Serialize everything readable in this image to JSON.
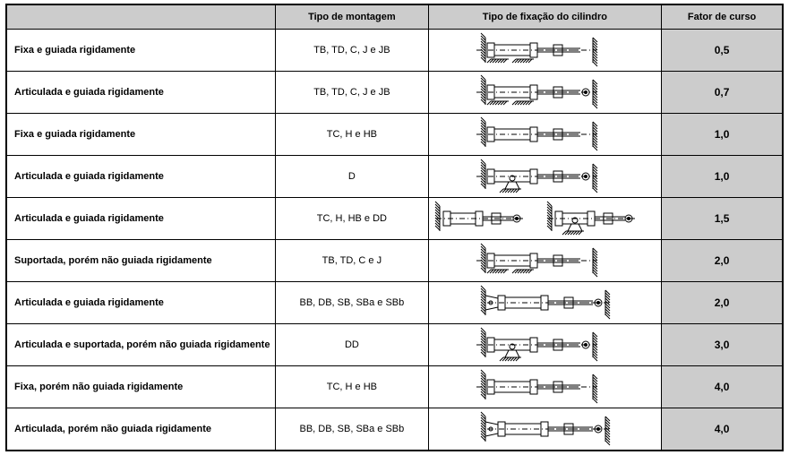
{
  "headers": {
    "h0": "",
    "h1": "Tipo de montagem",
    "h2": "Tipo de fixação do cilindro",
    "h3": "Fator de curso"
  },
  "rows": [
    {
      "desc": "Fixa e guiada rigidamente",
      "mount": "TB, TD, C, J e JB",
      "factor": "0,5",
      "diagram": "A"
    },
    {
      "desc": "Articulada e guiada rigidamente",
      "mount": "TB, TD, C, J e JB",
      "factor": "0,7",
      "diagram": "B"
    },
    {
      "desc": "Fixa e guiada rigidamente",
      "mount": "TC, H e HB",
      "factor": "1,0",
      "diagram": "C"
    },
    {
      "desc": "Articulada e guiada rigidamente",
      "mount": "D",
      "factor": "1,0",
      "diagram": "D"
    },
    {
      "desc": "Articulada e guiada rigidamente",
      "mount": "TC, H, HB e DD",
      "factor": "1,5",
      "diagram": "E"
    },
    {
      "desc": "Suportada, porém não guiada rigidamente",
      "mount": "TB, TD, C e J",
      "factor": "2,0",
      "diagram": "F"
    },
    {
      "desc": "Articulada e guiada rigidamente",
      "mount": "BB, DB, SB, SBa e SBb",
      "factor": "2,0",
      "diagram": "G"
    },
    {
      "desc": "Articulada e suportada, porém não guiada rigidamente",
      "mount": "DD",
      "factor": "3,0",
      "diagram": "H"
    },
    {
      "desc": "Fixa, porém não guiada rigidamente",
      "mount": "TC, H e HB",
      "factor": "4,0",
      "diagram": "I"
    },
    {
      "desc": "Articulada, porém não guiada rigidamente",
      "mount": "BB, DB, SB, SBa e SBb",
      "factor": "4,0",
      "diagram": "J"
    }
  ],
  "style": {
    "header_bg": "#cccccc",
    "factor_bg": "#cccccc",
    "border_color": "#000000",
    "font_size_header": 11,
    "font_size_cell": 11,
    "font_size_factor": 12,
    "stroke_width": 1,
    "hatch_spacing": 3
  }
}
